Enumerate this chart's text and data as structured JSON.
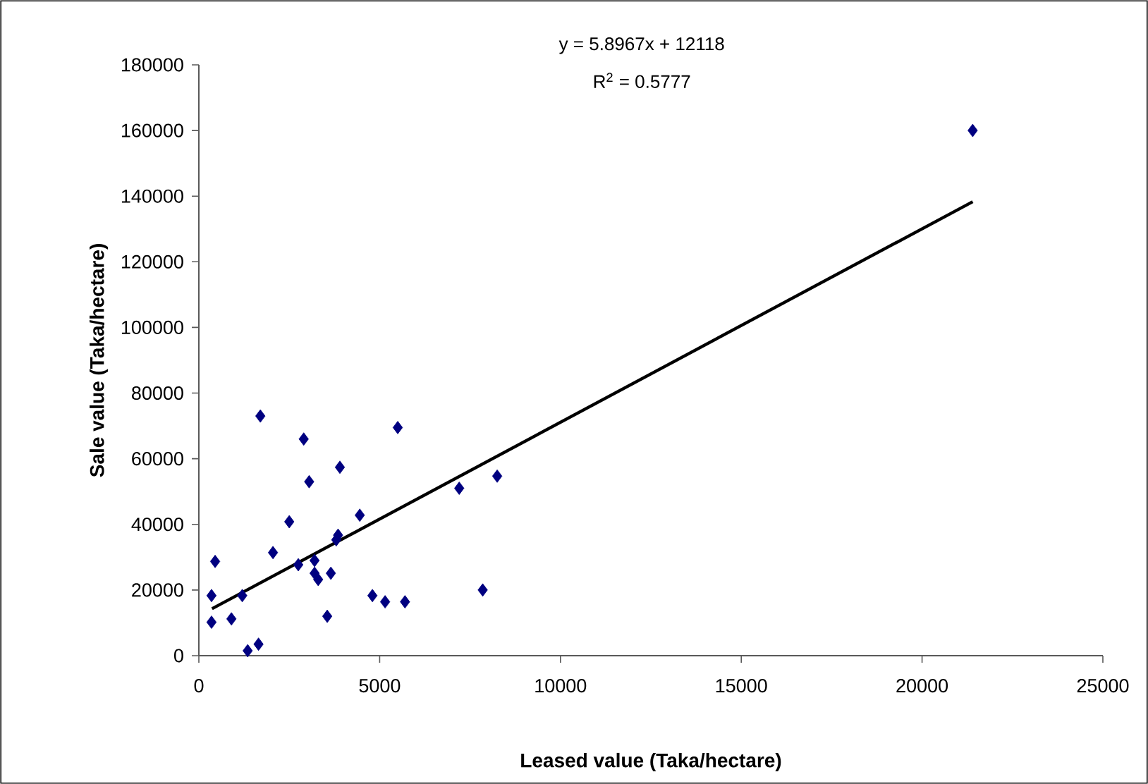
{
  "chart_data": {
    "type": "scatter",
    "xlabel": "Leased value (Taka/hectare)",
    "ylabel": "Sale value (Taka/hectare)",
    "xlim": [
      0,
      25000
    ],
    "xticks": [
      0,
      5000,
      10000,
      15000,
      20000,
      25000
    ],
    "ylim": [
      0,
      180000
    ],
    "yticks": [
      0,
      20000,
      40000,
      60000,
      80000,
      100000,
      120000,
      140000,
      160000,
      180000
    ],
    "grid": false,
    "series": [
      {
        "marker": "diamond",
        "color": "#000080",
        "x": [
          1700,
          2900,
          5500,
          3900,
          3050,
          7200,
          8250,
          2500,
          4450,
          3850,
          3800,
          2050,
          2750,
          3200,
          3200,
          3300,
          3650,
          450,
          350,
          1200,
          4800,
          5150,
          5700,
          7850,
          350,
          900,
          3550,
          1350,
          1650,
          21400
        ],
        "values": [
          73000,
          66000,
          69500,
          57400,
          53000,
          51000,
          54700,
          40800,
          42800,
          36700,
          35300,
          31400,
          27700,
          29000,
          25100,
          23200,
          25100,
          28700,
          18300,
          18300,
          18300,
          16400,
          16400,
          20000,
          10200,
          11200,
          12000,
          1500,
          3500,
          160000
        ]
      },
      {
        "type": "line",
        "marker": "none",
        "line_style": "solid",
        "color": "#000000",
        "x": [
          364,
          21400
        ],
        "values": [
          14300,
          138300
        ]
      }
    ],
    "annotations": [
      "y = 5.8967x + 12118",
      "R$^{2}$ = 0.5777"
    ]
  }
}
